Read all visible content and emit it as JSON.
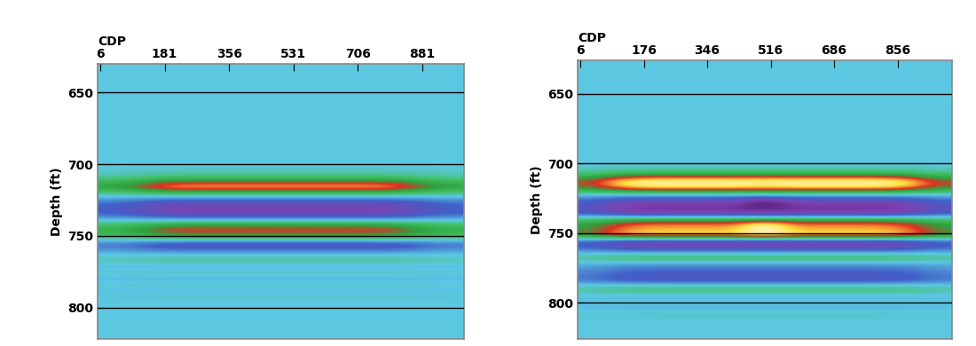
{
  "chart_data": [
    {
      "type": "heatmap",
      "xlabel": "CDP",
      "ylabel": "Depth (ft)",
      "xlim": [
        -1,
        993
      ],
      "ylim": [
        822,
        630
      ],
      "xticks": [
        6,
        181,
        356,
        531,
        706,
        881
      ],
      "yticks": [
        650,
        700,
        750,
        800
      ],
      "grid": "y",
      "color_range": [
        -1,
        1
      ],
      "cells": [
        [
          0,
          0,
          0,
          0,
          0,
          0,
          0,
          0
        ],
        [
          0,
          0,
          0,
          0,
          0,
          0,
          0,
          0
        ],
        [
          0,
          0,
          0,
          0,
          0,
          0,
          0,
          0
        ],
        [
          0,
          0,
          0,
          0,
          0,
          0,
          0,
          0
        ],
        [
          0,
          0,
          0,
          0,
          0,
          0,
          0,
          0
        ],
        [
          0,
          0,
          0,
          0,
          0,
          0,
          0,
          0
        ],
        [
          0,
          0,
          0,
          0,
          0,
          0,
          0,
          0
        ],
        [
          0,
          0,
          0,
          0,
          0,
          0,
          0,
          0
        ],
        [
          0,
          0,
          0,
          0,
          0,
          0,
          0,
          0
        ],
        [
          0,
          0,
          0,
          0,
          0,
          0,
          0,
          0
        ],
        [
          0,
          0,
          0,
          0,
          0,
          0,
          0,
          0
        ],
        [
          0,
          0,
          0,
          0,
          0,
          0,
          0,
          0
        ],
        [
          0,
          0,
          0,
          0,
          0,
          0,
          0,
          0
        ],
        [
          0,
          0,
          0,
          0,
          0,
          0,
          0,
          0
        ],
        [
          0,
          0,
          0,
          0,
          0,
          0,
          0,
          0
        ],
        [
          0,
          0,
          0,
          0,
          0,
          0,
          0,
          0
        ],
        [
          0,
          0,
          0,
          0,
          0,
          0,
          0,
          0
        ],
        [
          0,
          0,
          0,
          0,
          0,
          0,
          0,
          0
        ],
        [
          0.03,
          0.05,
          0.05,
          0.05,
          0.05,
          0.05,
          0.05,
          0.03
        ],
        [
          0.08,
          0.15,
          0.15,
          0.15,
          0.15,
          0.15,
          0.15,
          0.08
        ],
        [
          0.25,
          0.45,
          0.45,
          0.45,
          0.45,
          0.45,
          0.45,
          0.25
        ],
        [
          0.44,
          0.8,
          0.8,
          0.8,
          0.8,
          0.8,
          0.8,
          0.44
        ],
        [
          0.19,
          0.35,
          0.35,
          0.35,
          0.35,
          0.35,
          0.35,
          0.19
        ],
        [
          -0.08,
          -0.15,
          -0.15,
          -0.15,
          -0.15,
          -0.15,
          -0.15,
          -0.08
        ],
        [
          -0.28,
          -0.5,
          -0.5,
          -0.5,
          -0.5,
          -0.5,
          -0.5,
          -0.28
        ],
        [
          -0.33,
          -0.6,
          -0.6,
          -0.6,
          -0.6,
          -0.6,
          -0.6,
          -0.33
        ],
        [
          -0.25,
          -0.45,
          -0.45,
          -0.45,
          -0.45,
          -0.45,
          -0.45,
          -0.25
        ],
        [
          0.06,
          0.1,
          0.1,
          0.1,
          0.1,
          0.1,
          0.1,
          0.06
        ],
        [
          0.3,
          0.55,
          0.55,
          0.55,
          0.55,
          0.55,
          0.55,
          0.3
        ],
        [
          0.33,
          0.6,
          0.6,
          0.6,
          0.6,
          0.6,
          0.6,
          0.33
        ],
        [
          0.14,
          0.25,
          0.25,
          0.25,
          0.25,
          0.25,
          0.25,
          0.14
        ],
        [
          -0.25,
          -0.45,
          -0.45,
          -0.45,
          -0.45,
          -0.45,
          -0.45,
          -0.25
        ],
        [
          -0.14,
          -0.25,
          -0.25,
          -0.25,
          -0.25,
          -0.25,
          -0.25,
          -0.14
        ],
        [
          0.03,
          0.05,
          0.05,
          0.05,
          0.05,
          0.05,
          0.05,
          0.03
        ],
        [
          0.08,
          0.15,
          0.15,
          0.15,
          0.15,
          0.15,
          0.15,
          0.08
        ],
        [
          -0.06,
          -0.1,
          -0.1,
          -0.1,
          -0.1,
          -0.1,
          -0.1,
          -0.06
        ],
        [
          0.06,
          0.1,
          0.1,
          0.1,
          0.1,
          0.1,
          0.1,
          0.06
        ],
        [
          -0.06,
          -0.1,
          -0.1,
          -0.1,
          -0.1,
          -0.1,
          -0.1,
          -0.06
        ],
        [
          0.04,
          0.08,
          0.08,
          0.08,
          0.08,
          0.08,
          0.08,
          0.04
        ],
        [
          -0.03,
          -0.05,
          -0.05,
          -0.05,
          -0.05,
          -0.05,
          -0.05,
          -0.03
        ],
        [
          0.03,
          0.05,
          0.05,
          0.05,
          0.05,
          0.05,
          0.05,
          0.03
        ],
        [
          0,
          0,
          0,
          0,
          0,
          0,
          0,
          0
        ],
        [
          0,
          0,
          0,
          0,
          0,
          0,
          0,
          0
        ],
        [
          0,
          0,
          0,
          0,
          0,
          0,
          0,
          0
        ],
        [
          0,
          0,
          0,
          0,
          0,
          0,
          0,
          0
        ],
        [
          0,
          0,
          0,
          0,
          0,
          0,
          0,
          0
        ],
        [
          0,
          0,
          0,
          0,
          0,
          0,
          0,
          0
        ],
        [
          0,
          0,
          0,
          0,
          0,
          0,
          0,
          0
        ]
      ]
    },
    {
      "type": "heatmap",
      "xlabel": "CDP",
      "ylabel": "Depth (ft)",
      "xlim": [
        -1,
        1001
      ],
      "ylim": [
        826,
        626
      ],
      "xticks": [
        6,
        176,
        346,
        516,
        686,
        856
      ],
      "yticks": [
        650,
        700,
        750,
        800
      ],
      "grid": "y",
      "color_range": [
        -1,
        1
      ],
      "cells": [
        [
          0,
          0,
          0,
          0,
          0,
          0,
          0,
          0,
          0,
          0,
          0,
          0,
          0
        ],
        [
          0,
          0,
          0,
          0,
          0,
          0,
          0,
          0,
          0,
          0,
          0,
          0,
          0
        ],
        [
          0,
          0,
          0,
          0,
          0,
          0,
          0,
          0,
          0,
          0,
          0,
          0,
          0
        ],
        [
          0,
          0,
          0,
          0,
          0,
          0,
          0,
          0,
          0,
          0,
          0,
          0,
          0
        ],
        [
          0,
          0,
          0,
          0,
          0,
          0,
          0,
          0,
          0,
          0,
          0,
          0,
          0
        ],
        [
          0,
          0,
          0,
          0,
          0,
          0,
          0,
          0,
          0,
          0,
          0,
          0,
          0
        ],
        [
          0,
          0,
          0,
          0,
          0,
          0,
          0,
          0,
          0,
          0,
          0,
          0,
          0
        ],
        [
          0,
          0,
          0,
          0,
          0,
          0,
          0,
          0,
          0,
          0,
          0,
          0,
          0
        ],
        [
          0,
          0,
          0,
          0,
          0,
          0,
          0,
          0,
          0,
          0,
          0,
          0,
          0
        ],
        [
          0,
          0,
          0,
          0,
          0,
          0,
          0,
          0,
          0,
          0,
          0,
          0,
          0
        ],
        [
          0,
          0,
          0,
          0,
          0,
          0,
          0,
          0,
          0,
          0,
          0,
          0,
          0
        ],
        [
          0,
          0,
          0,
          0,
          0,
          0,
          0,
          0,
          0,
          0,
          0,
          0,
          0
        ],
        [
          0,
          0,
          0,
          0,
          0,
          0,
          0,
          0,
          0,
          0,
          0,
          0,
          0
        ],
        [
          0,
          0,
          0,
          0,
          0,
          0,
          0,
          0,
          0,
          0,
          0,
          0,
          0
        ],
        [
          0,
          0,
          0,
          0,
          0,
          0,
          0,
          0,
          0,
          0,
          0,
          0,
          0
        ],
        [
          0,
          0,
          0,
          0,
          0,
          0,
          0,
          0,
          0,
          0,
          0,
          0,
          0
        ],
        [
          0,
          0,
          0,
          0,
          0,
          0,
          0,
          0,
          0,
          0,
          0,
          0,
          0
        ],
        [
          0,
          0,
          0,
          0,
          0,
          0,
          0,
          0,
          0,
          0,
          0,
          0,
          0
        ],
        [
          0,
          0,
          0,
          0,
          0,
          0,
          0,
          0,
          0,
          0,
          0,
          0,
          0
        ],
        [
          0.05,
          0.07,
          0.08,
          0.08,
          0.08,
          0.08,
          0.08,
          0.08,
          0.08,
          0.08,
          0.08,
          0.07,
          0.05
        ],
        [
          0.21,
          0.32,
          0.35,
          0.35,
          0.35,
          0.35,
          0.35,
          0.35,
          0.35,
          0.35,
          0.35,
          0.32,
          0.21
        ],
        [
          0.51,
          0.77,
          0.85,
          0.85,
          0.85,
          0.85,
          0.85,
          0.85,
          0.85,
          0.85,
          0.85,
          0.77,
          0.51
        ],
        [
          0.57,
          0.86,
          0.95,
          0.95,
          0.95,
          0.95,
          0.9,
          0.95,
          0.95,
          0.95,
          0.95,
          0.86,
          0.57
        ],
        [
          0.3,
          0.45,
          0.5,
          0.5,
          0.5,
          0.5,
          0.5,
          0.5,
          0.5,
          0.5,
          0.5,
          0.45,
          0.3
        ],
        [
          -0.12,
          -0.18,
          -0.2,
          -0.2,
          -0.2,
          -0.2,
          -0.2,
          -0.2,
          -0.2,
          -0.2,
          -0.2,
          -0.18,
          -0.12
        ],
        [
          -0.33,
          -0.5,
          -0.55,
          -0.55,
          -0.55,
          -0.55,
          -0.95,
          -0.55,
          -0.55,
          -0.55,
          -0.55,
          -0.5,
          -0.33
        ],
        [
          -0.42,
          -0.63,
          -0.7,
          -0.7,
          -0.7,
          -0.7,
          -0.85,
          -0.7,
          -0.7,
          -0.7,
          -0.7,
          -0.63,
          -0.42
        ],
        [
          -0.36,
          -0.54,
          -0.6,
          -0.6,
          -0.6,
          -0.6,
          -0.6,
          -0.6,
          -0.6,
          -0.6,
          -0.6,
          -0.54,
          -0.36
        ],
        [
          0.18,
          0.27,
          0.3,
          0.3,
          0.3,
          0.3,
          0.3,
          0.3,
          0.3,
          0.3,
          0.3,
          0.27,
          0.18
        ],
        [
          0.42,
          0.63,
          0.7,
          0.7,
          0.7,
          0.7,
          1.0,
          0.7,
          0.7,
          0.7,
          0.7,
          0.63,
          0.42
        ],
        [
          0.45,
          0.68,
          0.75,
          0.75,
          0.75,
          0.75,
          1.0,
          0.75,
          0.75,
          0.75,
          0.75,
          0.68,
          0.45
        ],
        [
          0.51,
          0.77,
          0.85,
          0.85,
          0.85,
          0.85,
          0.95,
          0.85,
          0.85,
          0.85,
          0.85,
          0.77,
          0.51
        ],
        [
          -0.3,
          -0.45,
          -0.5,
          -0.5,
          -0.5,
          -0.5,
          -0.5,
          -0.5,
          -0.5,
          -0.5,
          -0.5,
          -0.45,
          -0.3
        ],
        [
          -0.33,
          -0.5,
          -0.55,
          -0.55,
          -0.55,
          -0.55,
          -0.55,
          -0.55,
          -0.55,
          -0.55,
          -0.55,
          -0.5,
          -0.33
        ],
        [
          -0.06,
          -0.09,
          -0.1,
          -0.1,
          -0.1,
          -0.1,
          -0.1,
          -0.1,
          -0.1,
          -0.1,
          -0.1,
          -0.09,
          -0.06
        ],
        [
          0.18,
          0.27,
          0.3,
          0.3,
          0.3,
          0.3,
          0.3,
          0.3,
          0.3,
          0.3,
          0.3,
          0.27,
          0.18
        ],
        [
          -0.06,
          -0.09,
          -0.1,
          -0.1,
          -0.1,
          -0.1,
          -0.1,
          -0.1,
          -0.1,
          -0.1,
          -0.1,
          -0.09,
          -0.06
        ],
        [
          -0.15,
          -0.23,
          -0.25,
          -0.25,
          -0.25,
          -0.25,
          -0.25,
          -0.25,
          -0.25,
          -0.25,
          -0.25,
          -0.23,
          -0.15
        ],
        [
          -0.21,
          -0.32,
          -0.35,
          -0.35,
          -0.35,
          -0.35,
          -0.35,
          -0.35,
          -0.35,
          -0.35,
          -0.35,
          -0.32,
          -0.21
        ],
        [
          -0.24,
          -0.36,
          -0.4,
          -0.4,
          -0.4,
          -0.4,
          -0.4,
          -0.4,
          -0.4,
          -0.4,
          -0.4,
          -0.36,
          -0.24
        ],
        [
          0.06,
          0.09,
          0.1,
          0.1,
          0.1,
          0.1,
          0.1,
          0.1,
          0.1,
          0.1,
          0.1,
          0.09,
          0.06
        ],
        [
          0.12,
          0.18,
          0.2,
          0.2,
          0.2,
          0.2,
          0.2,
          0.2,
          0.2,
          0.2,
          0.2,
          0.18,
          0.12
        ],
        [
          -0.06,
          -0.09,
          -0.1,
          -0.1,
          -0.1,
          -0.1,
          -0.1,
          -0.1,
          -0.1,
          -0.1,
          -0.1,
          -0.09,
          -0.06
        ],
        [
          0.03,
          0.05,
          0.05,
          0.05,
          0.05,
          0.05,
          0.05,
          0.05,
          0.05,
          0.05,
          0.05,
          0.05,
          0.03
        ],
        [
          -0.06,
          -0.09,
          -0.1,
          -0.1,
          -0.1,
          -0.1,
          -0.1,
          -0.1,
          -0.1,
          -0.1,
          -0.1,
          -0.09,
          -0.06
        ],
        [
          0.05,
          0.07,
          0.08,
          0.08,
          0.08,
          0.08,
          0.08,
          0.08,
          0.08,
          0.08,
          0.08,
          0.07,
          0.05
        ],
        [
          0,
          0,
          0,
          0,
          0,
          0,
          0,
          0,
          0,
          0,
          0,
          0,
          0
        ],
        [
          0,
          0,
          0,
          0,
          0,
          0,
          0,
          0,
          0,
          0,
          0,
          0,
          0
        ],
        [
          0,
          0,
          0,
          0,
          0,
          0,
          0,
          0,
          0,
          0,
          0,
          0,
          0
        ],
        [
          0,
          0,
          0,
          0,
          0,
          0,
          0,
          0,
          0,
          0,
          0,
          0,
          0
        ]
      ]
    }
  ]
}
